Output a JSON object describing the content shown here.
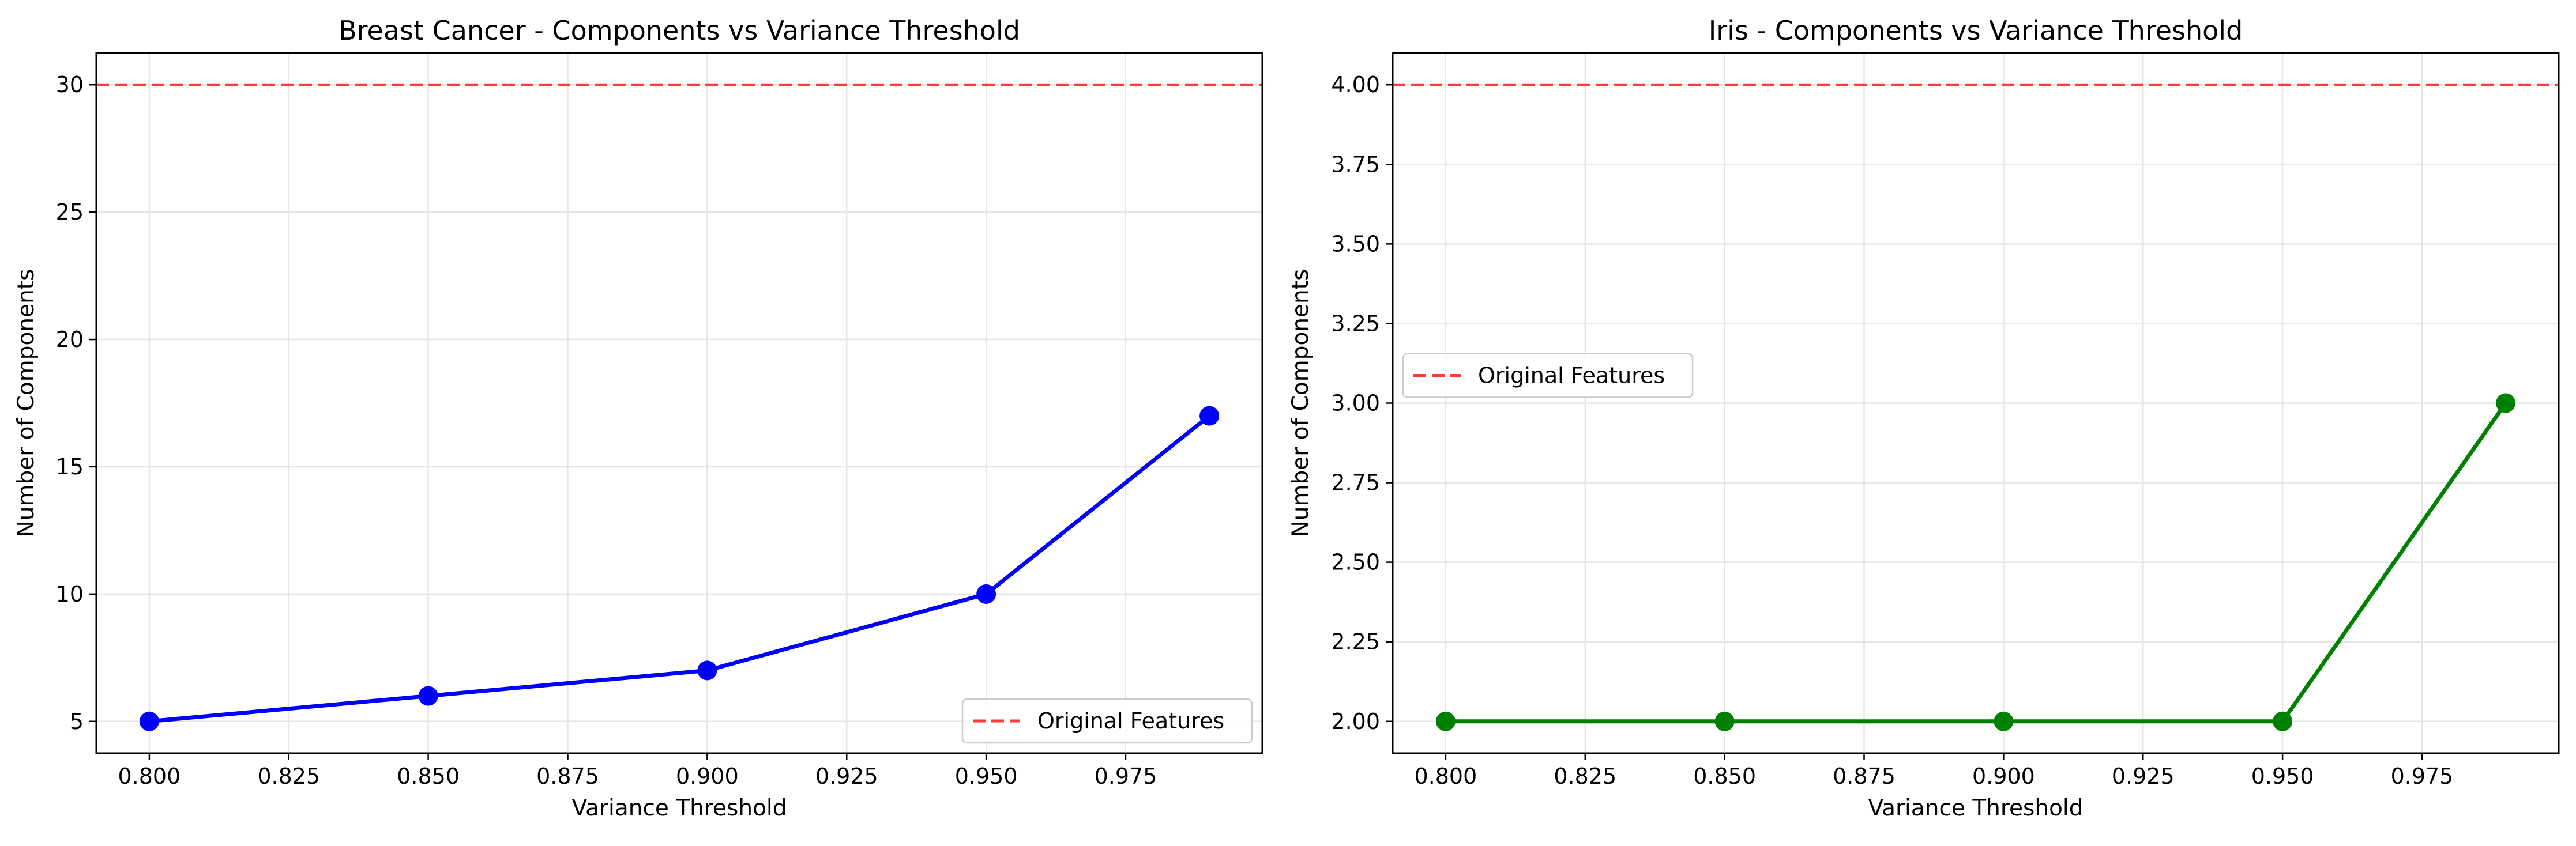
{
  "chart_data": [
    {
      "type": "line",
      "title": "Breast Cancer - Components vs Variance Threshold",
      "xlabel": "Variance Threshold",
      "ylabel": "Number of Components",
      "x": [
        0.8,
        0.85,
        0.9,
        0.95,
        0.99
      ],
      "series": [
        {
          "values": [
            5,
            6,
            7,
            10,
            17
          ],
          "color": "#0000ff",
          "marker": "circle"
        }
      ],
      "reference_line": {
        "name": "Original Features",
        "y": 30,
        "color": "#ff3b3b",
        "style": "dashed"
      },
      "xlim": [
        0.7905,
        0.9995
      ],
      "ylim": [
        3.75,
        31.25
      ],
      "xticks": [
        0.8,
        0.825,
        0.85,
        0.875,
        0.9,
        0.925,
        0.95,
        0.975
      ],
      "xtick_labels": [
        "0.800",
        "0.825",
        "0.850",
        "0.875",
        "0.900",
        "0.925",
        "0.950",
        "0.975"
      ],
      "yticks": [
        5,
        10,
        15,
        20,
        25,
        30
      ],
      "ytick_labels": [
        "5",
        "10",
        "15",
        "20",
        "25",
        "30"
      ],
      "grid": true,
      "legend_position": "lower-right",
      "legend": [
        {
          "label": "Original Features"
        }
      ]
    },
    {
      "type": "line",
      "title": "Iris - Components vs Variance Threshold",
      "xlabel": "Variance Threshold",
      "ylabel": "Number of Components",
      "x": [
        0.8,
        0.85,
        0.9,
        0.95,
        0.99
      ],
      "series": [
        {
          "values": [
            2,
            2,
            2,
            2,
            3
          ],
          "color": "#008000",
          "marker": "circle"
        }
      ],
      "reference_line": {
        "name": "Original Features",
        "y": 4,
        "color": "#ff3b3b",
        "style": "dashed"
      },
      "xlim": [
        0.7905,
        0.9995
      ],
      "ylim": [
        1.9,
        4.1
      ],
      "xticks": [
        0.8,
        0.825,
        0.85,
        0.875,
        0.9,
        0.925,
        0.95,
        0.975
      ],
      "xtick_labels": [
        "0.800",
        "0.825",
        "0.850",
        "0.875",
        "0.900",
        "0.925",
        "0.950",
        "0.975"
      ],
      "yticks": [
        2.0,
        2.25,
        2.5,
        2.75,
        3.0,
        3.25,
        3.5,
        3.75,
        4.0
      ],
      "ytick_labels": [
        "2.00",
        "2.25",
        "2.50",
        "2.75",
        "3.00",
        "3.25",
        "3.50",
        "3.75",
        "4.00"
      ],
      "grid": true,
      "legend_position": "center-left",
      "legend": [
        {
          "label": "Original Features"
        }
      ]
    }
  ]
}
